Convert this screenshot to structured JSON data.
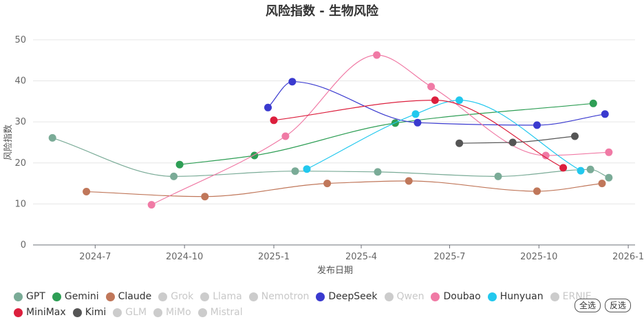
{
  "chart_data": {
    "type": "line",
    "title": "风险指数 - 生物风险",
    "xlabel": "发布日期",
    "ylabel": "风险指数",
    "ylim": [
      0,
      52
    ],
    "yticks": [
      0,
      10,
      20,
      30,
      40,
      50
    ],
    "xlim": [
      "2024-04-28",
      "2026-01-08"
    ],
    "xticks": [
      "2024-7",
      "2024-10",
      "2025-1",
      "2025-4",
      "2025-7",
      "2025-10",
      "2026-1"
    ],
    "legend_position": "bottom",
    "series": [
      {
        "name": "GPT",
        "color": "#7aab97",
        "visible": true,
        "points": [
          [
            "2024-05-18",
            26.1
          ],
          [
            "2024-09-20",
            16.7
          ],
          [
            "2025-01-23",
            18.0
          ],
          [
            "2025-04-18",
            17.8
          ],
          [
            "2025-08-20",
            16.7
          ],
          [
            "2025-11-23",
            18.4
          ],
          [
            "2025-12-12",
            16.4
          ]
        ]
      },
      {
        "name": "Gemini",
        "color": "#2e9e55",
        "visible": true,
        "points": [
          [
            "2024-09-26",
            19.6
          ],
          [
            "2024-12-12",
            21.8
          ],
          [
            "2025-05-06",
            29.7
          ],
          [
            "2025-11-26",
            34.5
          ]
        ]
      },
      {
        "name": "Claude",
        "color": "#c0775a",
        "visible": true,
        "points": [
          [
            "2024-06-22",
            13.0
          ],
          [
            "2024-10-22",
            11.8
          ],
          [
            "2025-02-25",
            15.0
          ],
          [
            "2025-05-20",
            15.6
          ],
          [
            "2025-09-29",
            13.1
          ],
          [
            "2025-12-05",
            15.0
          ]
        ]
      },
      {
        "name": "Grok",
        "color": "#bbbbbb",
        "visible": false,
        "points": []
      },
      {
        "name": "Llama",
        "color": "#bbbbbb",
        "visible": false,
        "points": []
      },
      {
        "name": "Nemotron",
        "color": "#bbbbbb",
        "visible": false,
        "points": []
      },
      {
        "name": "DeepSeek",
        "color": "#3a3acf",
        "visible": true,
        "points": [
          [
            "2024-12-26",
            33.5
          ],
          [
            "2025-01-20",
            39.8
          ],
          [
            "2025-05-29",
            29.8
          ],
          [
            "2025-09-29",
            29.2
          ],
          [
            "2025-12-08",
            31.9
          ]
        ]
      },
      {
        "name": "Qwen",
        "color": "#bbbbbb",
        "visible": false,
        "points": []
      },
      {
        "name": "Doubao",
        "color": "#f07aa5",
        "visible": true,
        "points": [
          [
            "2024-08-28",
            9.8
          ],
          [
            "2025-01-13",
            26.5
          ],
          [
            "2025-04-17",
            46.3
          ],
          [
            "2025-06-12",
            38.6
          ],
          [
            "2025-10-08",
            21.8
          ],
          [
            "2025-12-12",
            22.6
          ]
        ]
      },
      {
        "name": "Hunyuan",
        "color": "#22c8ee",
        "visible": true,
        "points": [
          [
            "2025-02-04",
            18.5
          ],
          [
            "2025-05-27",
            31.9
          ],
          [
            "2025-07-11",
            35.3
          ],
          [
            "2025-11-13",
            18.1
          ]
        ]
      },
      {
        "name": "ERNIE",
        "color": "#bbbbbb",
        "visible": false,
        "points": []
      },
      {
        "name": "MiniMax",
        "color": "#dc1f3d",
        "visible": true,
        "points": [
          [
            "2025-01-01",
            30.4
          ],
          [
            "2025-06-16",
            35.3
          ],
          [
            "2025-10-26",
            18.8
          ]
        ]
      },
      {
        "name": "Kimi",
        "color": "#555555",
        "visible": true,
        "points": [
          [
            "2025-07-11",
            24.8
          ],
          [
            "2025-09-04",
            25.0
          ],
          [
            "2025-11-07",
            26.5
          ]
        ]
      },
      {
        "name": "GLM",
        "color": "#bbbbbb",
        "visible": false,
        "points": []
      },
      {
        "name": "MiMo",
        "color": "#bbbbbb",
        "visible": false,
        "points": []
      },
      {
        "name": "Mistral",
        "color": "#bbbbbb",
        "visible": false,
        "points": []
      }
    ]
  },
  "legend": {
    "row1": [
      "GPT",
      "Gemini",
      "Claude",
      "Grok",
      "Llama",
      "Nemotron",
      "DeepSeek",
      "Qwen",
      "Doubao",
      "Hunyuan",
      "ERNIE"
    ],
    "row2": [
      "MiniMax",
      "Kimi",
      "GLM",
      "MiMo",
      "Mistral"
    ],
    "select_all": "全选",
    "invert": "反选"
  }
}
